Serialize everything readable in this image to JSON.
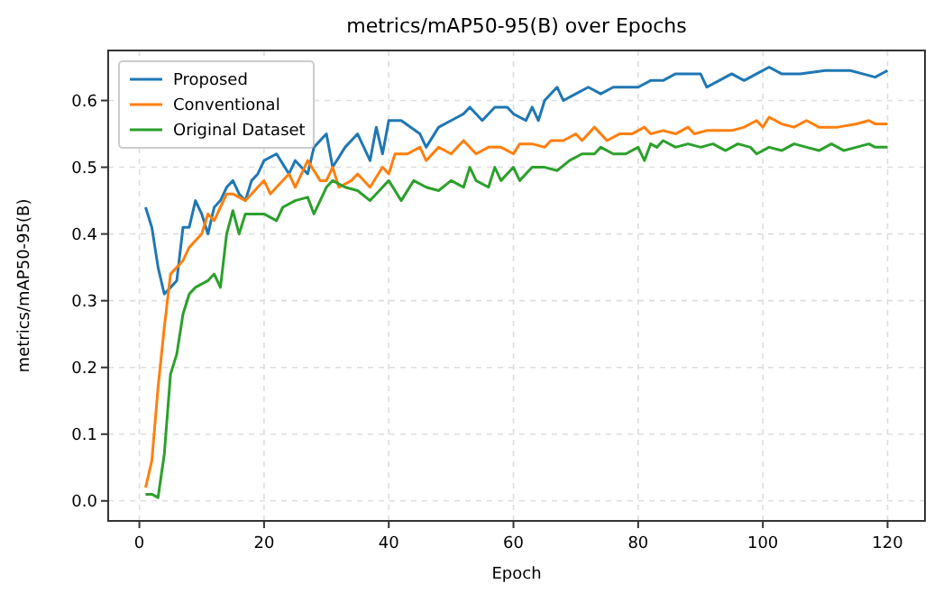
{
  "chart_data": {
    "type": "line",
    "title": "metrics/mAP50-95(B) over Epochs",
    "xlabel": "Epoch",
    "ylabel": "metrics/mAP50-95(B)",
    "xlim": [
      -5,
      126
    ],
    "ylim": [
      -0.03,
      0.675
    ],
    "xticks": [
      0,
      20,
      40,
      60,
      80,
      100,
      120
    ],
    "yticks": [
      {
        "value": 0,
        "label": "0.0"
      },
      0.1,
      0.2,
      0.3,
      0.4,
      0.5,
      0.6
    ],
    "grid": true,
    "legend": "top left",
    "series": [
      {
        "name": "Proposed",
        "color": "#1f77b4",
        "x": [
          1,
          2,
          3,
          4,
          5,
          6,
          7,
          8,
          9,
          10,
          11,
          12,
          13,
          14,
          15,
          16,
          17,
          18,
          19,
          20,
          22,
          24,
          25,
          27,
          28,
          30,
          31,
          33,
          35,
          37,
          38,
          39,
          40,
          42,
          45,
          46,
          48,
          50,
          52,
          53,
          55,
          57,
          59,
          60,
          62,
          63,
          64,
          65,
          67,
          68,
          70,
          72,
          74,
          76,
          78,
          80,
          82,
          84,
          86,
          88,
          90,
          91,
          93,
          95,
          97,
          99,
          101,
          103,
          106,
          110,
          114,
          116,
          118,
          120
        ],
        "values": [
          0.44,
          0.41,
          0.35,
          0.31,
          0.32,
          0.33,
          0.41,
          0.41,
          0.45,
          0.43,
          0.4,
          0.44,
          0.45,
          0.47,
          0.48,
          0.46,
          0.45,
          0.48,
          0.49,
          0.51,
          0.52,
          0.49,
          0.51,
          0.49,
          0.53,
          0.55,
          0.5,
          0.53,
          0.55,
          0.51,
          0.56,
          0.52,
          0.57,
          0.57,
          0.55,
          0.53,
          0.56,
          0.57,
          0.58,
          0.59,
          0.57,
          0.59,
          0.59,
          0.58,
          0.57,
          0.59,
          0.57,
          0.6,
          0.62,
          0.6,
          0.61,
          0.62,
          0.61,
          0.62,
          0.62,
          0.62,
          0.63,
          0.63,
          0.64,
          0.64,
          0.64,
          0.62,
          0.63,
          0.64,
          0.63,
          0.64,
          0.65,
          0.64,
          0.64,
          0.645,
          0.645,
          0.64,
          0.635,
          0.645
        ]
      },
      {
        "name": "Conventional",
        "color": "#ff7f0e",
        "x": [
          1,
          2,
          3,
          4,
          5,
          6,
          7,
          8,
          9,
          10,
          11,
          12,
          13,
          14,
          15,
          16,
          17,
          18,
          19,
          20,
          21,
          22,
          24,
          25,
          27,
          29,
          30,
          31,
          32,
          34,
          35,
          37,
          39,
          40,
          41,
          43,
          45,
          46,
          48,
          50,
          52,
          54,
          56,
          58,
          60,
          61,
          63,
          65,
          66,
          68,
          70,
          71,
          73,
          75,
          77,
          79,
          81,
          82,
          84,
          86,
          88,
          89,
          91,
          93,
          95,
          97,
          99,
          100,
          101,
          103,
          105,
          107,
          109,
          112,
          115,
          117,
          118,
          120
        ],
        "values": [
          0.02,
          0.06,
          0.17,
          0.26,
          0.34,
          0.35,
          0.36,
          0.38,
          0.39,
          0.4,
          0.43,
          0.42,
          0.44,
          0.46,
          0.46,
          0.455,
          0.45,
          0.46,
          0.47,
          0.48,
          0.46,
          0.47,
          0.49,
          0.47,
          0.51,
          0.48,
          0.48,
          0.5,
          0.47,
          0.48,
          0.49,
          0.47,
          0.5,
          0.49,
          0.52,
          0.52,
          0.53,
          0.51,
          0.53,
          0.52,
          0.54,
          0.52,
          0.53,
          0.53,
          0.52,
          0.535,
          0.535,
          0.53,
          0.54,
          0.54,
          0.55,
          0.54,
          0.56,
          0.54,
          0.55,
          0.55,
          0.56,
          0.55,
          0.555,
          0.55,
          0.56,
          0.55,
          0.555,
          0.555,
          0.555,
          0.56,
          0.57,
          0.56,
          0.575,
          0.565,
          0.56,
          0.57,
          0.56,
          0.56,
          0.565,
          0.57,
          0.565,
          0.565
        ]
      },
      {
        "name": "Original Dataset",
        "color": "#2ca02c",
        "x": [
          1,
          2,
          3,
          4,
          5,
          6,
          7,
          8,
          9,
          10,
          11,
          12,
          13,
          14,
          15,
          16,
          17,
          18,
          20,
          22,
          23,
          25,
          27,
          28,
          30,
          31,
          33,
          35,
          37,
          39,
          40,
          42,
          44,
          46,
          48,
          50,
          52,
          53,
          54,
          56,
          57,
          58,
          60,
          61,
          63,
          65,
          67,
          69,
          71,
          73,
          74,
          76,
          78,
          80,
          81,
          82,
          83,
          84,
          86,
          88,
          90,
          92,
          94,
          96,
          98,
          99,
          101,
          103,
          105,
          107,
          109,
          111,
          113,
          115,
          117,
          118,
          120
        ],
        "values": [
          0.01,
          0.01,
          0.005,
          0.07,
          0.19,
          0.22,
          0.28,
          0.31,
          0.32,
          0.325,
          0.33,
          0.34,
          0.32,
          0.4,
          0.435,
          0.4,
          0.43,
          0.43,
          0.43,
          0.42,
          0.44,
          0.45,
          0.455,
          0.43,
          0.47,
          0.48,
          0.47,
          0.465,
          0.45,
          0.47,
          0.48,
          0.45,
          0.48,
          0.47,
          0.465,
          0.48,
          0.47,
          0.5,
          0.48,
          0.47,
          0.5,
          0.48,
          0.5,
          0.48,
          0.5,
          0.5,
          0.495,
          0.51,
          0.52,
          0.52,
          0.53,
          0.52,
          0.52,
          0.53,
          0.51,
          0.535,
          0.53,
          0.54,
          0.53,
          0.535,
          0.53,
          0.535,
          0.525,
          0.535,
          0.53,
          0.52,
          0.53,
          0.525,
          0.535,
          0.53,
          0.525,
          0.535,
          0.525,
          0.53,
          0.535,
          0.53,
          0.53
        ]
      }
    ]
  }
}
